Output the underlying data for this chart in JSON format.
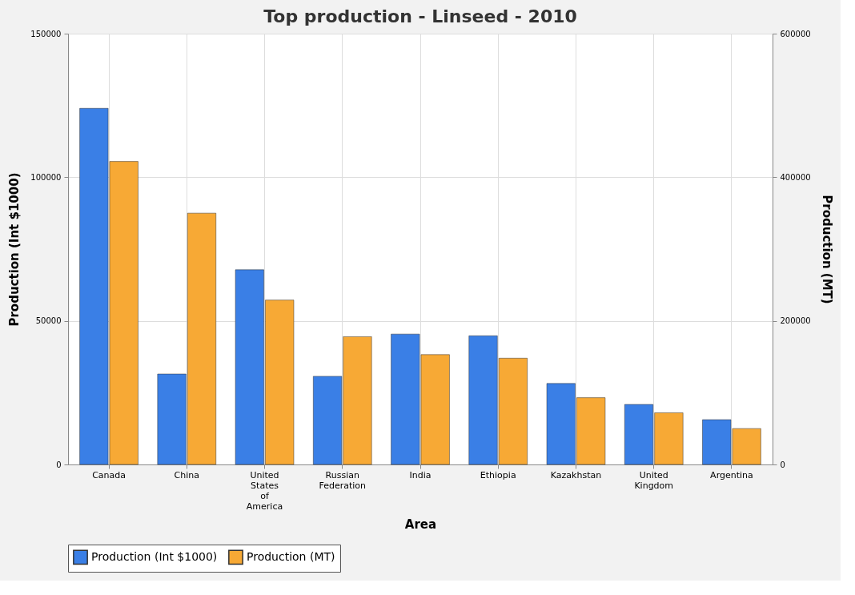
{
  "chart_data": {
    "type": "bar",
    "title": "Top production - Linseed - 2010",
    "xlabel": "Area",
    "ylabel": "Production (Int $1000)",
    "y2label": "Production (MT)",
    "categories": [
      "Canada",
      "China",
      "United States of America",
      "Russian Federation",
      "India",
      "Ethiopia",
      "Kazakhstan",
      "United Kingdom",
      "Argentina"
    ],
    "series": [
      {
        "name": "Production (Int $1000)",
        "color": "#3a7fe6",
        "values": [
          124000,
          31500,
          67800,
          30700,
          45400,
          44800,
          28200,
          20900,
          15600
        ]
      },
      {
        "name": "Production (MT)",
        "color": "#f7a935",
        "axis": "y2",
        "values": [
          422000,
          350000,
          229000,
          178000,
          153000,
          148000,
          93000,
          72000,
          50000
        ]
      }
    ],
    "ylim": [
      0,
      150000
    ],
    "yticks": [
      0,
      50000,
      100000,
      150000
    ],
    "y2lim": [
      0,
      600000
    ],
    "y2ticks": [
      0,
      200000,
      400000,
      600000
    ],
    "grid": true,
    "legend": "bottom"
  }
}
